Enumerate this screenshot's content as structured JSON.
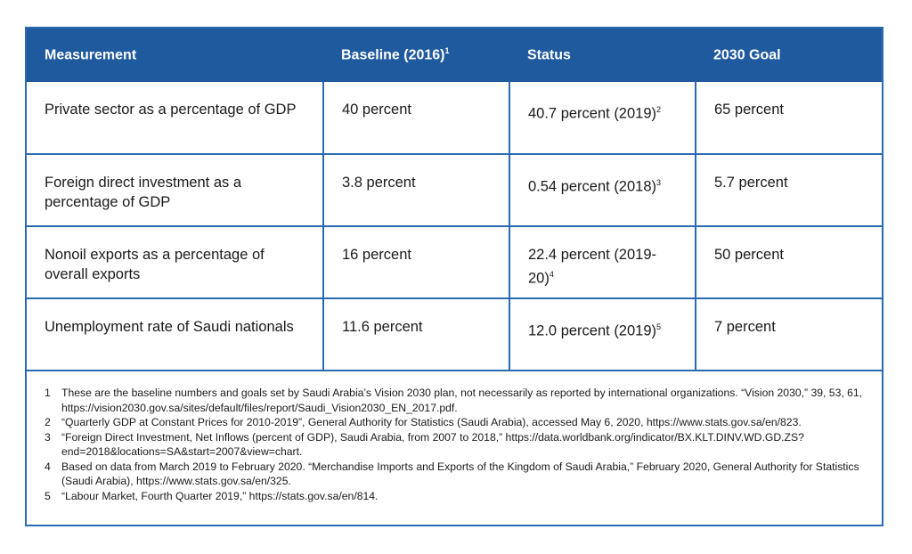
{
  "table": {
    "headers": [
      {
        "label": "Measurement",
        "sup": ""
      },
      {
        "label": "Baseline (2016)",
        "sup": "1"
      },
      {
        "label": "Status",
        "sup": ""
      },
      {
        "label": "2030 Goal",
        "sup": ""
      }
    ],
    "rows": [
      {
        "measurement": "Private sector as a percentage of GDP",
        "baseline": "40 percent",
        "status": "40.7 percent (2019)",
        "status_sup": "2",
        "goal": "65 percent"
      },
      {
        "measurement": "Foreign direct investment as a percentage of GDP",
        "baseline": "3.8 percent",
        "status": "0.54 percent (2018)",
        "status_sup": "3",
        "goal": "5.7 percent"
      },
      {
        "measurement": "Nonoil exports as a percentage of overall exports",
        "baseline": "16 percent",
        "status": "22.4 percent (2019-20)",
        "status_sup": "4",
        "goal": "50 percent"
      },
      {
        "measurement": "Unemployment rate of Saudi nationals",
        "baseline": "11.6 percent",
        "status": "12.0 percent (2019)",
        "status_sup": "5",
        "goal": "7 percent"
      }
    ]
  },
  "footnotes": [
    {
      "num": "1",
      "text": "These are the baseline numbers and goals set by Saudi Arabia’s Vision 2030 plan, not necessarily as reported by international organizations. “Vision 2030,” 39, 53, 61, https://vision2030.gov.sa/sites/default/files/report/Saudi_Vision2030_EN_2017.pdf."
    },
    {
      "num": "2",
      "text": "“Quarterly GDP at Constant Prices for 2010-2019”, General Authority for Statistics (Saudi Arabia), accessed May 6, 2020, https://www.stats.gov.sa/en/823."
    },
    {
      "num": "3",
      "text": "“Foreign Direct Investment, Net Inflows (percent of GDP), Saudi Arabia, from 2007 to 2018,” https://data.worldbank.org/indicator/BX.KLT.DINV.WD.GD.ZS?end=2018&locations=SA&start=2007&view=chart."
    },
    {
      "num": "4",
      "text": "Based on data from March 2019 to February 2020. “Merchandise Imports and Exports of the Kingdom of Saudi Arabia,” February 2020, General Authority for Statistics (Saudi Arabia), https://www.stats.gov.sa/en/325."
    },
    {
      "num": "5",
      "text": "“Labour Market, Fourth Quarter 2019,” https://stats.gov.sa/en/814."
    }
  ]
}
